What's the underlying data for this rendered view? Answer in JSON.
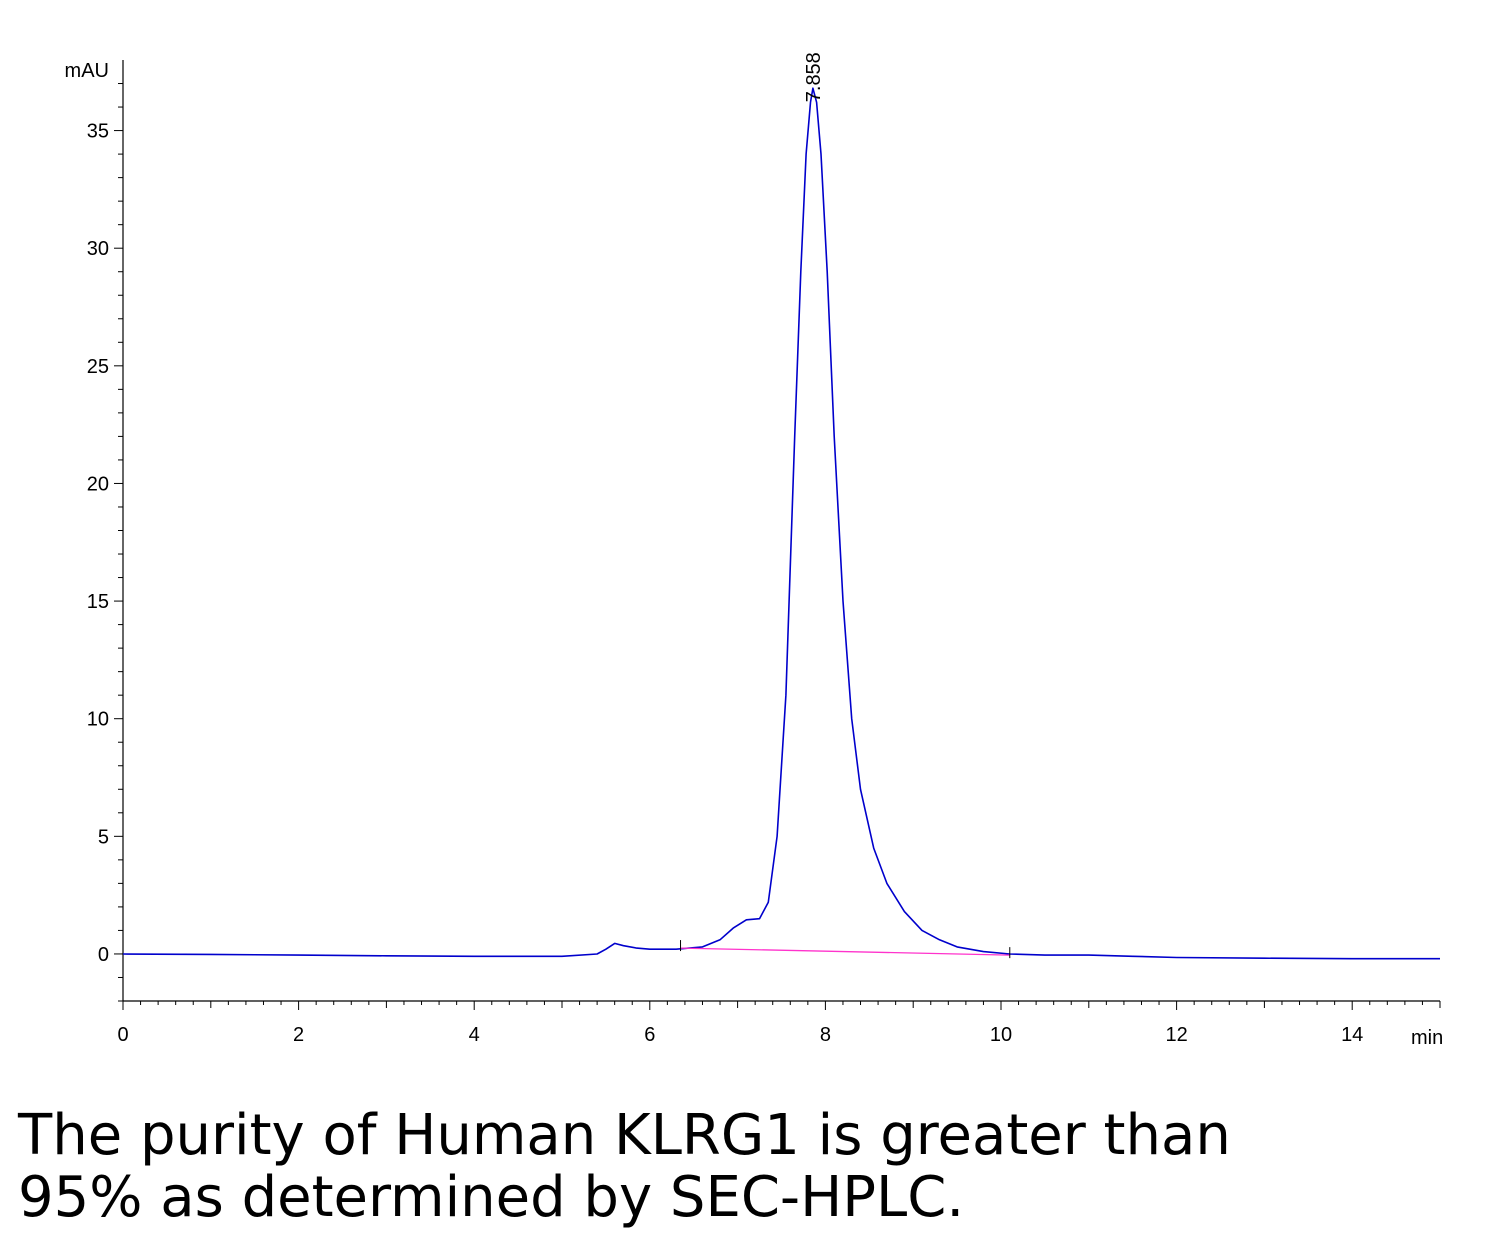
{
  "chart_data": {
    "type": "line",
    "title": "",
    "xlabel": "min",
    "ylabel": "mAU",
    "xlim": [
      0,
      15
    ],
    "ylim": [
      -2,
      38
    ],
    "x_ticks": [
      0,
      2,
      4,
      6,
      8,
      10,
      12,
      14
    ],
    "y_ticks": [
      0,
      5,
      10,
      15,
      20,
      25,
      30,
      35
    ],
    "grid": false,
    "legend": "none",
    "series": [
      {
        "color": "#0000cc",
        "x": [
          0,
          1,
          2,
          3,
          4,
          5,
          5.4,
          5.5,
          5.6,
          5.7,
          5.85,
          6.0,
          6.3,
          6.6,
          6.8,
          6.95,
          7.1,
          7.25,
          7.35,
          7.45,
          7.55,
          7.65,
          7.72,
          7.78,
          7.83,
          7.858,
          7.9,
          7.95,
          8.02,
          8.1,
          8.2,
          8.3,
          8.4,
          8.55,
          8.7,
          8.9,
          9.1,
          9.3,
          9.5,
          9.8,
          10.1,
          10.5,
          11,
          11.5,
          12,
          13,
          14,
          15
        ],
        "y": [
          0,
          -0.02,
          -0.05,
          -0.08,
          -0.1,
          -0.1,
          0.0,
          0.2,
          0.45,
          0.35,
          0.25,
          0.2,
          0.2,
          0.3,
          0.6,
          1.1,
          1.45,
          1.5,
          2.2,
          5.0,
          11.0,
          22.0,
          29.0,
          34.0,
          36.2,
          36.8,
          36.2,
          34.0,
          29.0,
          22.0,
          15.0,
          10.0,
          7.0,
          4.5,
          3.0,
          1.8,
          1.0,
          0.6,
          0.3,
          0.1,
          0.0,
          -0.05,
          -0.05,
          -0.1,
          -0.15,
          -0.18,
          -0.2,
          -0.2
        ]
      },
      {
        "color": "#ff33cc",
        "x": [
          6.35,
          10.1
        ],
        "y": [
          0.25,
          -0.05
        ]
      }
    ],
    "annotations": [
      {
        "x": 7.858,
        "y": 36.8,
        "text": "7.858"
      }
    ]
  },
  "caption": {
    "line1": "The purity of Human KLRG1 is greater than",
    "line2": "95% as determined by SEC-HPLC."
  }
}
